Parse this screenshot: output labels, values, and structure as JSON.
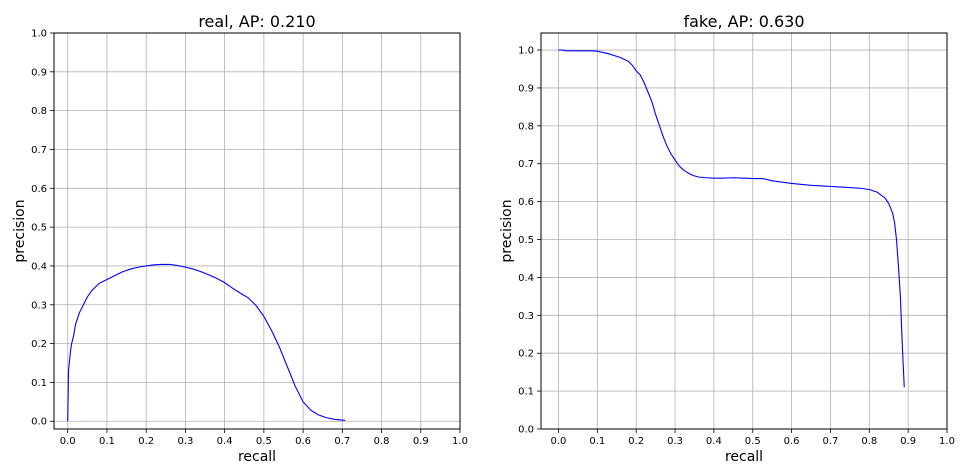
{
  "chart_data": [
    {
      "type": "line",
      "title": "real, AP: 0.210",
      "xlabel": "recall",
      "ylabel": "precision",
      "xlim": [
        -0.035,
        1.0
      ],
      "ylim": [
        -0.02,
        1.0
      ],
      "xticks": [
        "0.0",
        "0.1",
        "0.2",
        "0.3",
        "0.4",
        "0.5",
        "0.6",
        "0.7",
        "0.8",
        "0.9",
        "1.0"
      ],
      "yticks": [
        "0.0",
        "0.1",
        "0.2",
        "0.3",
        "0.4",
        "0.5",
        "0.6",
        "0.7",
        "0.8",
        "0.9",
        "1.0"
      ],
      "grid": true,
      "line_color": "#0000ff",
      "series": [
        {
          "x": [
            0.0,
            0.002,
            0.004,
            0.007,
            0.01,
            0.015,
            0.02,
            0.03,
            0.04,
            0.05,
            0.06,
            0.07,
            0.08,
            0.09,
            0.1,
            0.12,
            0.14,
            0.16,
            0.18,
            0.2,
            0.22,
            0.24,
            0.26,
            0.28,
            0.3,
            0.32,
            0.34,
            0.36,
            0.38,
            0.4,
            0.42,
            0.44,
            0.46,
            0.48,
            0.5,
            0.52,
            0.54,
            0.56,
            0.58,
            0.6,
            0.62,
            0.64,
            0.66,
            0.68,
            0.7,
            0.707
          ],
          "y": [
            0.0,
            0.13,
            0.15,
            0.18,
            0.2,
            0.22,
            0.25,
            0.28,
            0.3,
            0.32,
            0.335,
            0.345,
            0.355,
            0.36,
            0.365,
            0.375,
            0.385,
            0.392,
            0.397,
            0.4,
            0.403,
            0.404,
            0.404,
            0.401,
            0.397,
            0.392,
            0.385,
            0.377,
            0.368,
            0.357,
            0.343,
            0.33,
            0.318,
            0.298,
            0.27,
            0.233,
            0.19,
            0.14,
            0.09,
            0.05,
            0.028,
            0.016,
            0.009,
            0.005,
            0.003,
            0.002
          ]
        }
      ]
    },
    {
      "type": "line",
      "title": "fake, AP: 0.630",
      "xlabel": "recall",
      "ylabel": "precision",
      "xlim": [
        -0.045,
        1.0
      ],
      "ylim": [
        0.0,
        1.045
      ],
      "xticks": [
        "0.0",
        "0.1",
        "0.2",
        "0.3",
        "0.4",
        "0.5",
        "0.6",
        "0.7",
        "0.8",
        "0.9",
        "1.0"
      ],
      "yticks": [
        "0.0",
        "0.1",
        "0.2",
        "0.3",
        "0.4",
        "0.5",
        "0.6",
        "0.7",
        "0.8",
        "0.9",
        "1.0"
      ],
      "grid": true,
      "line_color": "#0000ff",
      "series": [
        {
          "x": [
            0.0,
            0.01,
            0.02,
            0.05,
            0.08,
            0.1,
            0.13,
            0.16,
            0.18,
            0.19,
            0.2,
            0.21,
            0.22,
            0.23,
            0.24,
            0.25,
            0.26,
            0.27,
            0.28,
            0.29,
            0.3,
            0.31,
            0.32,
            0.33,
            0.34,
            0.35,
            0.36,
            0.38,
            0.4,
            0.42,
            0.45,
            0.48,
            0.5,
            0.52,
            0.53,
            0.55,
            0.6,
            0.65,
            0.7,
            0.75,
            0.78,
            0.8,
            0.82,
            0.84,
            0.85,
            0.86,
            0.865,
            0.87,
            0.875,
            0.88,
            0.885,
            0.89
          ],
          "y": [
            1.0,
            1.0,
            0.998,
            0.998,
            0.998,
            0.997,
            0.99,
            0.98,
            0.97,
            0.96,
            0.945,
            0.935,
            0.915,
            0.89,
            0.865,
            0.83,
            0.8,
            0.77,
            0.745,
            0.725,
            0.71,
            0.695,
            0.685,
            0.678,
            0.672,
            0.668,
            0.665,
            0.663,
            0.662,
            0.662,
            0.663,
            0.662,
            0.661,
            0.661,
            0.66,
            0.655,
            0.648,
            0.643,
            0.64,
            0.637,
            0.635,
            0.632,
            0.625,
            0.61,
            0.595,
            0.57,
            0.545,
            0.5,
            0.43,
            0.35,
            0.22,
            0.11
          ]
        }
      ]
    }
  ]
}
